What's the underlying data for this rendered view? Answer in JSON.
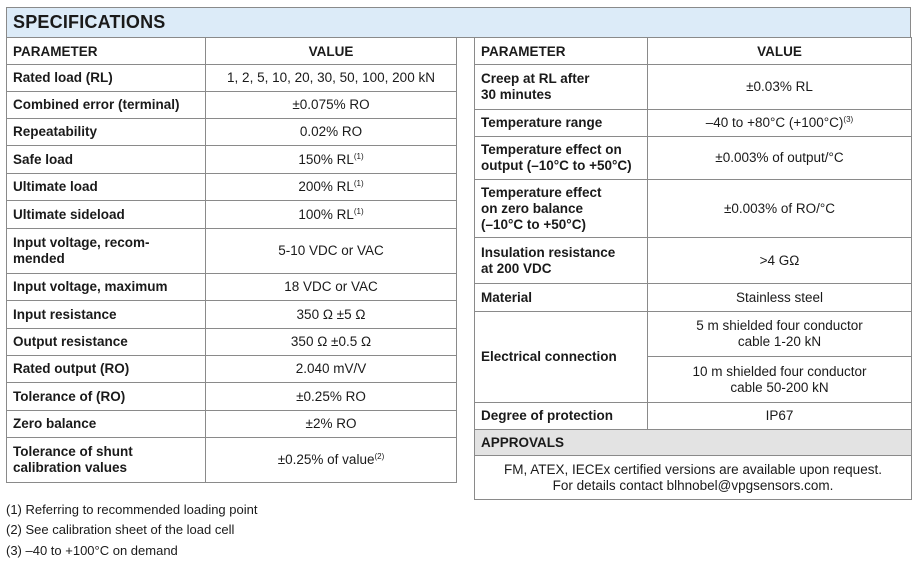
{
  "title": "SPECIFICATIONS",
  "headers": {
    "parameter": "PARAMETER",
    "value": "VALUE"
  },
  "left_rows": [
    {
      "parameter": "Rated load (RL)",
      "value": "1, 2, 5, 10, 20, 30, 50, 100, 200 kN",
      "sup": ""
    },
    {
      "parameter": "Combined error (terminal)",
      "value": "±0.075% RO",
      "sup": ""
    },
    {
      "parameter": "Repeatability",
      "value": "0.02% RO",
      "sup": ""
    },
    {
      "parameter": "Safe load",
      "value": "150% RL",
      "sup": "(1)"
    },
    {
      "parameter": "Ultimate load",
      "value": "200% RL",
      "sup": "(1)"
    },
    {
      "parameter": "Ultimate sideload",
      "value": "100% RL",
      "sup": "(1)"
    },
    {
      "parameter": "Input voltage, recom-\nmended",
      "value": "5-10 VDC or VAC",
      "sup": ""
    },
    {
      "parameter": "Input voltage, maximum",
      "value": "18 VDC or VAC",
      "sup": ""
    },
    {
      "parameter": "Input resistance",
      "value": "350 Ω ±5 Ω",
      "sup": ""
    },
    {
      "parameter": "Output resistance",
      "value": "350 Ω ±0.5 Ω",
      "sup": ""
    },
    {
      "parameter": "Rated output (RO)",
      "value": "2.040 mV/V",
      "sup": ""
    },
    {
      "parameter": "Tolerance of (RO)",
      "value": "±0.25% RO",
      "sup": ""
    },
    {
      "parameter": "Zero balance",
      "value": "±2% RO",
      "sup": ""
    },
    {
      "parameter": "Tolerance of shunt\ncalibration values",
      "value": "±0.25% of value",
      "sup": "(2)"
    }
  ],
  "right_rows": [
    {
      "parameter": "Creep at RL after\n30 minutes",
      "value": "±0.03% RL",
      "sup": ""
    },
    {
      "parameter": "Temperature range",
      "value": "–40 to +80°C (+100°C)",
      "sup": "(3)"
    },
    {
      "parameter": "Temperature effect on\noutput (–10°C to +50°C)",
      "value": "±0.003% of output/°C",
      "sup": ""
    },
    {
      "parameter": "Temperature effect\non zero balance\n(–10°C to +50°C)",
      "value": "±0.003% of RO/°C",
      "sup": ""
    },
    {
      "parameter": "Insulation resistance\nat 200 VDC",
      "value": ">4 GΩ",
      "sup": ""
    },
    {
      "parameter": "Material",
      "value": "Stainless steel",
      "sup": ""
    }
  ],
  "electrical": {
    "parameter": "Electrical connection",
    "values": [
      "5 m shielded four conductor\ncable 1-20 kN",
      "10 m shielded four conductor\ncable 50-200 kN"
    ]
  },
  "protection": {
    "parameter": "Degree of protection",
    "value": "IP67"
  },
  "approvals": {
    "title": "APPROVALS",
    "text": "FM, ATEX, IECEx certified versions are available upon request.\nFor details contact blhnobel@vpgsensors.com."
  },
  "footnotes": [
    "(1) Referring to recommended loading point",
    "(2) See calibration sheet of the load cell",
    "(3) –40 to +100°C on demand"
  ],
  "colors": {
    "title_bg": "#dcebf8",
    "approvals_bg": "#e3e3e3",
    "border": "#8a8a8a"
  }
}
